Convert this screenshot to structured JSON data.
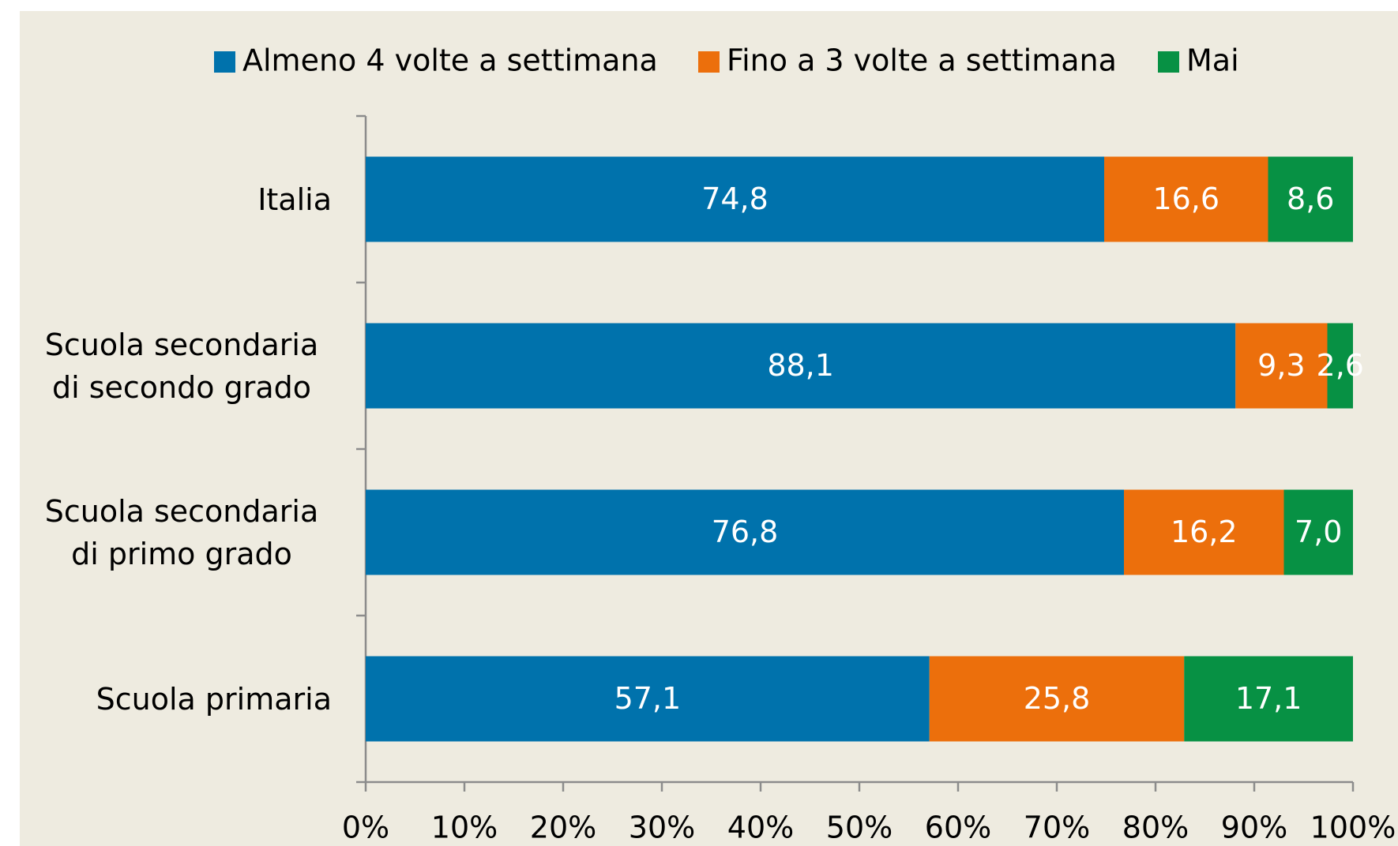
{
  "chart_data": {
    "type": "stacked-bar-horizontal",
    "categories": [
      "Italia",
      "Scuola secondaria di secondo grado",
      "Scuola secondaria di primo grado",
      "Scuola primaria"
    ],
    "series": [
      {
        "name": "Almeno 4 volte a settimana",
        "color": "#0072ac",
        "values": [
          74.8,
          88.1,
          76.8,
          57.1
        ],
        "value_labels": [
          "74,8",
          "88,1",
          "76,8",
          "57,1"
        ]
      },
      {
        "name": "Fino a 3 volte a settimana",
        "color": "#ec6f0c",
        "values": [
          16.6,
          9.3,
          16.2,
          25.8
        ],
        "value_labels": [
          "16,6",
          "9,3",
          "16,2",
          "25,8"
        ]
      },
      {
        "name": "Mai",
        "color": "#079144",
        "values": [
          8.6,
          2.6,
          7.0,
          17.1
        ],
        "value_labels": [
          "8,6",
          "2,6",
          "7,0",
          "17,1"
        ]
      }
    ],
    "xlim": [
      0,
      100
    ],
    "xticks": [
      {
        "value": 0,
        "label": "0%"
      },
      {
        "value": 10,
        "label": "10%"
      },
      {
        "value": 20,
        "label": "20%"
      },
      {
        "value": 30,
        "label": "30%"
      },
      {
        "value": 40,
        "label": "40%"
      },
      {
        "value": 50,
        "label": "50%"
      },
      {
        "value": 60,
        "label": "60%"
      },
      {
        "value": 70,
        "label": "70%"
      },
      {
        "value": 80,
        "label": "80%"
      },
      {
        "value": 90,
        "label": "90%"
      },
      {
        "value": 100,
        "label": "100%"
      }
    ],
    "legend": "top",
    "grid": false
  }
}
